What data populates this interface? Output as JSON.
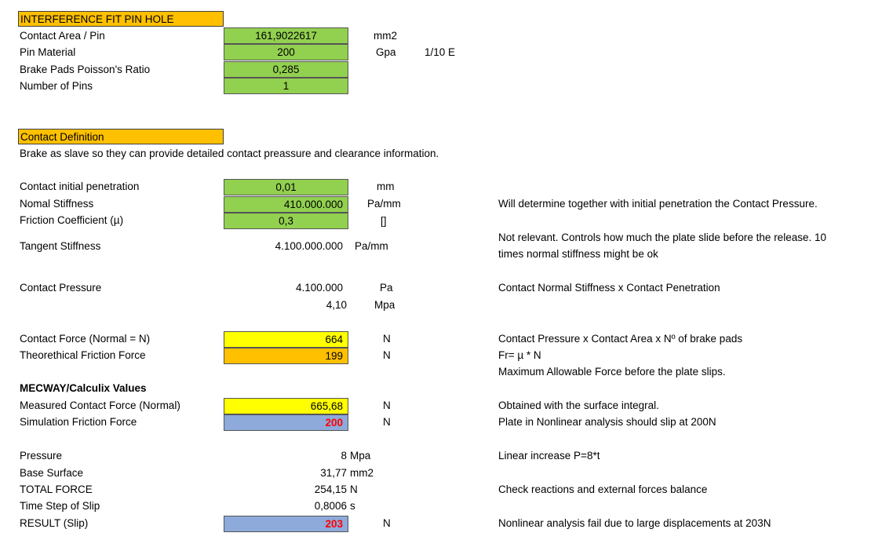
{
  "section1": {
    "header": "INTERFERENCE FIT PIN HOLE",
    "rows": [
      {
        "label": "Contact Area / Pin",
        "value": "161,9022617",
        "unit": "mm2",
        "note": ""
      },
      {
        "label": "Pin Material",
        "value": "200",
        "unit": "Gpa",
        "note": "1/10 E"
      },
      {
        "label": "Brake Pads Poisson's Ratio",
        "value": "0,285",
        "unit": "",
        "note": ""
      },
      {
        "label": "Number of Pins",
        "value": "1",
        "unit": "",
        "note": ""
      }
    ]
  },
  "section2": {
    "header": "Contact Definition",
    "description": "Brake as slave so they can provide detailed contact preassure and clearance information.",
    "penetration": {
      "label": "Contact initial penetration",
      "value": "0,01",
      "unit": "mm"
    },
    "normal_stiffness": {
      "label": "Nomal Stiffness",
      "value": "410.000.000",
      "unit": "Pa/mm",
      "note": "Will determine together with initial penetration the Contact Pressure."
    },
    "friction": {
      "label": "Friction Coefficient (µ)",
      "value": "0,3",
      "unit": "[]"
    },
    "tangent": {
      "label": "Tangent Stiffness",
      "value": "4.100.000.000",
      "unit": "Pa/mm",
      "note_line1": "Not relevant. Controls how much the plate slide before the release. 10",
      "note_line2": "times normal stiffness might be ok"
    },
    "pressure": {
      "label": "Contact Pressure",
      "value_pa": "4.100.000",
      "unit_pa": "Pa",
      "value_mpa": "4,10",
      "unit_mpa": "Mpa",
      "note": "Contact Normal Stiffness x Contact Penetration"
    },
    "contact_force": {
      "label": "Contact Force (Normal = N)",
      "value": "664",
      "unit": "N",
      "note": "Contact Pressure x Contact Area x Nº of brake pads"
    },
    "friction_force": {
      "label": "Theorethical Friction Force",
      "value": "199",
      "unit": "N",
      "note": "Fr= µ * N"
    },
    "max_note": "Maximum Allowable Force before the plate slips."
  },
  "mecway": {
    "title": "MECWAY/Calculix  Values",
    "measured": {
      "label": "Measured Contact Force (Normal)",
      "value": "665,68",
      "unit": "N",
      "note": "Obtained with the surface integral."
    },
    "sim_friction": {
      "label": "Simulation Friction Force",
      "value": "200",
      "unit": "N",
      "note": "Plate in Nonlinear analysis should slip at 200N"
    }
  },
  "results": {
    "pressure": {
      "label": "Pressure",
      "value": "8",
      "unit": "Mpa",
      "note": "Linear increase P=8*t"
    },
    "base": {
      "label": "Base Surface",
      "value": "31,77",
      "unit": "mm2"
    },
    "total": {
      "label": "TOTAL FORCE",
      "value": "254,15",
      "unit": "N",
      "note": "Check reactions and external forces balance"
    },
    "time": {
      "label": "Time Step of Slip",
      "value": "0,8006",
      "unit": "s"
    },
    "result": {
      "label": "RESULT (Slip)",
      "value": "203",
      "unit": "N",
      "note": "Nonlinear analysis fail due to large displacements at 203N"
    }
  },
  "colors": {
    "orange": "#ffc000",
    "green": "#92d050",
    "yellow": "#ffff00",
    "blue": "#8eaadb",
    "red": "#ff0000"
  }
}
